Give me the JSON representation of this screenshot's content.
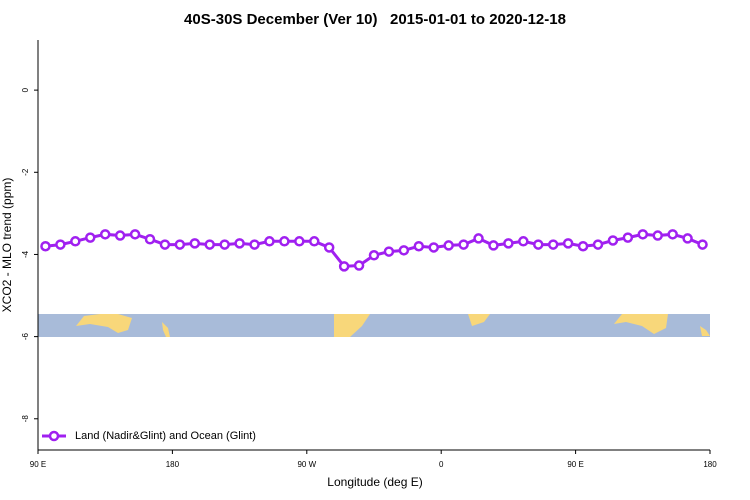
{
  "chart_data": {
    "type": "line",
    "title": "40S-30S December (Ver 10)   2015-01-01 to 2020-12-18",
    "xlabel": "Longitude (deg E)",
    "ylabel": "XCO2 - MLO trend (ppm)",
    "x": [
      95,
      105,
      115,
      125,
      135,
      145,
      155,
      165,
      175,
      185,
      195,
      205,
      215,
      225,
      235,
      245,
      255,
      265,
      275,
      285,
      295,
      305,
      315,
      325,
      335,
      345,
      355,
      365,
      375,
      385,
      395,
      405,
      415,
      425,
      435,
      445,
      455,
      465,
      475,
      485,
      495,
      505,
      515,
      525,
      535
    ],
    "series": [
      {
        "name": "Land (Nadir&Glint) and Ocean (Glint)",
        "color": "#a020f0",
        "values": [
          -3.8,
          -3.76,
          -3.68,
          -3.59,
          -3.51,
          -3.54,
          -3.51,
          -3.63,
          -3.76,
          -3.76,
          -3.73,
          -3.76,
          -3.76,
          -3.73,
          -3.76,
          -3.68,
          -3.68,
          -3.68,
          -3.68,
          -3.83,
          -4.29,
          -4.27,
          -4.02,
          -3.93,
          -3.9,
          -3.8,
          -3.83,
          -3.78,
          -3.76,
          -3.61,
          -3.78,
          -3.73,
          -3.68,
          -3.76,
          -3.76,
          -3.73,
          -3.8,
          -3.76,
          -3.66,
          -3.59,
          -3.51,
          -3.54,
          -3.51,
          -3.61,
          -3.76
        ]
      }
    ],
    "xlim": [
      90,
      540
    ],
    "xticks": [
      {
        "value": 90,
        "label": "90 E"
      },
      {
        "value": 180,
        "label": "180"
      },
      {
        "value": 270,
        "label": "90 W"
      },
      {
        "value": 360,
        "label": "0"
      },
      {
        "value": 450,
        "label": "90 E"
      },
      {
        "value": 540,
        "label": "180"
      }
    ],
    "ylim": [
      -8.76,
      1.22
    ],
    "yticks": [
      0,
      -2,
      -4,
      -6,
      -8
    ],
    "legend": "bottomleft"
  }
}
